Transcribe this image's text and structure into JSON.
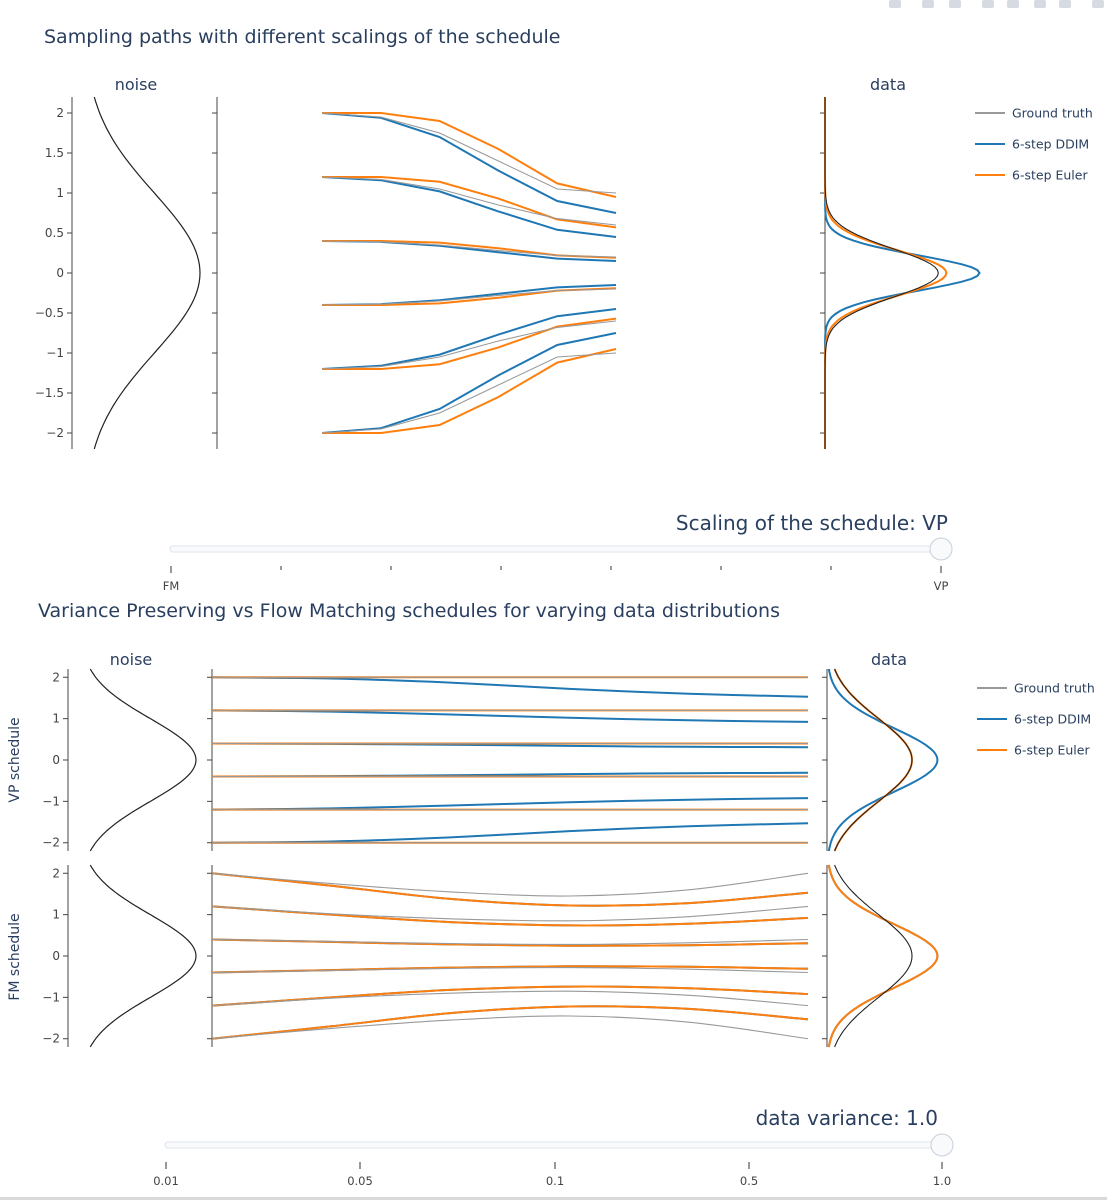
{
  "colors": {
    "ground_truth": "#999999",
    "ddim": "#1f77b4",
    "euler": "#ff7f0e",
    "axis": "#444444",
    "slider_track": "#dfe4ea",
    "slider_handle": "#f8fafc"
  },
  "modebar": {
    "icons": [
      "camera-icon",
      "zoom-icon",
      "pan-icon",
      "zoom-in-icon",
      "zoom-out-icon",
      "autoscale-icon",
      "reset-axes-icon",
      "plotly-logo-icon"
    ]
  },
  "chart_data": [
    {
      "type": "line",
      "title": "Sampling paths with different scalings of the schedule",
      "noise_title": "noise",
      "data_title": "data",
      "yticks": [
        "2",
        "1.5",
        "1",
        "0.5",
        "0",
        "−0.5",
        "−1",
        "−1.5",
        "−2"
      ],
      "ytick_values": [
        2,
        1.5,
        1,
        0.5,
        0,
        -0.5,
        -1,
        -1.5,
        -2
      ],
      "ylim": [
        -2.2,
        2.2
      ],
      "legend": [
        "Ground truth",
        "6-step DDIM",
        "6-step Euler"
      ],
      "t": [
        0,
        0.2,
        0.4,
        0.6,
        0.8,
        1.0
      ],
      "series": [
        {
          "name": "Ground truth",
          "paths": [
            [
              2,
              1.95,
              1.75,
              1.4,
              1.05,
              1.0
            ],
            [
              1.2,
              1.17,
              1.05,
              0.85,
              0.68,
              0.6
            ],
            [
              0.4,
              0.39,
              0.35,
              0.28,
              0.22,
              0.2
            ],
            [
              -0.4,
              -0.39,
              -0.35,
              -0.28,
              -0.22,
              -0.2
            ],
            [
              -1.2,
              -1.17,
              -1.05,
              -0.85,
              -0.68,
              -0.6
            ],
            [
              -2,
              -1.95,
              -1.75,
              -1.4,
              -1.05,
              -1.0
            ]
          ]
        },
        {
          "name": "6-step DDIM",
          "paths": [
            [
              2,
              1.94,
              1.7,
              1.28,
              0.9,
              0.75
            ],
            [
              1.2,
              1.16,
              1.02,
              0.77,
              0.54,
              0.45
            ],
            [
              0.4,
              0.39,
              0.34,
              0.26,
              0.18,
              0.15
            ],
            [
              -0.4,
              -0.39,
              -0.34,
              -0.26,
              -0.18,
              -0.15
            ],
            [
              -1.2,
              -1.16,
              -1.02,
              -0.77,
              -0.54,
              -0.45
            ],
            [
              -2,
              -1.94,
              -1.7,
              -1.28,
              -0.9,
              -0.75
            ]
          ]
        },
        {
          "name": "6-step Euler",
          "paths": [
            [
              2,
              2.0,
              1.9,
              1.55,
              1.12,
              0.95
            ],
            [
              1.2,
              1.2,
              1.14,
              0.93,
              0.67,
              0.57
            ],
            [
              0.4,
              0.4,
              0.38,
              0.31,
              0.22,
              0.19
            ],
            [
              -0.4,
              -0.4,
              -0.38,
              -0.31,
              -0.22,
              -0.19
            ],
            [
              -1.2,
              -1.2,
              -1.14,
              -0.93,
              -0.67,
              -0.57
            ],
            [
              -2,
              -2.0,
              -1.9,
              -1.55,
              -1.12,
              -0.95
            ]
          ]
        }
      ],
      "noise_density": {
        "mean": 0,
        "std": 1
      },
      "data_densities": [
        {
          "name": "Ground truth",
          "std": 0.3
        },
        {
          "name": "6-step DDIM",
          "std": 0.22
        },
        {
          "name": "6-step Euler",
          "std": 0.28
        }
      ]
    },
    {
      "type": "line",
      "title": "Variance Preserving vs Flow Matching schedules for varying data distributions",
      "noise_title": "noise",
      "data_title": "data",
      "row_labels": [
        "VP schedule",
        "FM schedule"
      ],
      "yticks": [
        "2",
        "1",
        "0",
        "−1",
        "−2"
      ],
      "ytick_values": [
        2,
        1,
        0,
        -1,
        -2
      ],
      "ylim": [
        -2.2,
        2.2
      ],
      "legend": [
        "Ground truth",
        "6-step DDIM",
        "6-step Euler"
      ],
      "t": [
        0,
        0.2,
        0.4,
        0.6,
        0.8,
        1.0
      ],
      "rows": [
        {
          "name": "VP schedule",
          "series": [
            {
              "name": "Ground truth",
              "paths": [
                [
                  2,
                  2,
                  2,
                  2,
                  2,
                  2
                ],
                [
                  1.2,
                  1.2,
                  1.2,
                  1.2,
                  1.2,
                  1.2
                ],
                [
                  0.4,
                  0.4,
                  0.4,
                  0.4,
                  0.4,
                  0.4
                ],
                [
                  -0.4,
                  -0.4,
                  -0.4,
                  -0.4,
                  -0.4,
                  -0.4
                ],
                [
                  -1.2,
                  -1.2,
                  -1.2,
                  -1.2,
                  -1.2,
                  -1.2
                ],
                [
                  -2,
                  -2,
                  -2,
                  -2,
                  -2,
                  -2
                ]
              ]
            },
            {
              "name": "6-step DDIM",
              "paths": [
                [
                  2,
                  1.97,
                  1.87,
                  1.72,
                  1.6,
                  1.53
                ],
                [
                  1.2,
                  1.17,
                  1.1,
                  1.02,
                  0.96,
                  0.92
                ],
                [
                  0.4,
                  0.39,
                  0.37,
                  0.34,
                  0.32,
                  0.31
                ],
                [
                  -0.4,
                  -0.39,
                  -0.37,
                  -0.34,
                  -0.32,
                  -0.31
                ],
                [
                  -1.2,
                  -1.17,
                  -1.1,
                  -1.02,
                  -0.96,
                  -0.92
                ],
                [
                  -2,
                  -1.97,
                  -1.87,
                  -1.72,
                  -1.6,
                  -1.53
                ]
              ]
            },
            {
              "name": "6-step Euler",
              "paths": [
                [
                  2,
                  2,
                  2,
                  2,
                  2,
                  2
                ],
                [
                  1.2,
                  1.2,
                  1.2,
                  1.2,
                  1.2,
                  1.2
                ],
                [
                  0.4,
                  0.4,
                  0.4,
                  0.4,
                  0.4,
                  0.4
                ],
                [
                  -0.4,
                  -0.4,
                  -0.4,
                  -0.4,
                  -0.4,
                  -0.4
                ],
                [
                  -1.2,
                  -1.2,
                  -1.2,
                  -1.2,
                  -1.2,
                  -1.2
                ],
                [
                  -2,
                  -2,
                  -2,
                  -2,
                  -2,
                  -2
                ]
              ]
            }
          ],
          "data_densities": [
            {
              "name": "Ground truth",
              "std": 1.0
            },
            {
              "name": "6-step DDIM",
              "std": 0.77
            },
            {
              "name": "6-step Euler",
              "std": 1.0
            }
          ]
        },
        {
          "name": "FM schedule",
          "series": [
            {
              "name": "Ground truth",
              "paths": [
                [
                  2,
                  1.75,
                  1.55,
                  1.45,
                  1.6,
                  2.0
                ],
                [
                  1.2,
                  1.02,
                  0.9,
                  0.85,
                  0.95,
                  1.2
                ],
                [
                  0.4,
                  0.35,
                  0.3,
                  0.28,
                  0.32,
                  0.4
                ],
                [
                  -0.4,
                  -0.35,
                  -0.3,
                  -0.28,
                  -0.32,
                  -0.4
                ],
                [
                  -1.2,
                  -1.02,
                  -0.9,
                  -0.85,
                  -0.95,
                  -1.2
                ],
                [
                  -2,
                  -1.75,
                  -1.55,
                  -1.45,
                  -1.6,
                  -2.0
                ]
              ]
            },
            {
              "name": "6-step DDIM",
              "paths": [
                [
                  2,
                  1.7,
                  1.38,
                  1.22,
                  1.28,
                  1.53
                ],
                [
                  1.2,
                  1.0,
                  0.82,
                  0.74,
                  0.78,
                  0.92
                ],
                [
                  0.4,
                  0.34,
                  0.28,
                  0.25,
                  0.26,
                  0.31
                ],
                [
                  -0.4,
                  -0.34,
                  -0.28,
                  -0.25,
                  -0.26,
                  -0.31
                ],
                [
                  -1.2,
                  -1.0,
                  -0.82,
                  -0.74,
                  -0.78,
                  -0.92
                ],
                [
                  -2,
                  -1.7,
                  -1.38,
                  -1.22,
                  -1.28,
                  -1.53
                ]
              ]
            },
            {
              "name": "6-step Euler",
              "paths": [
                [
                  2,
                  1.7,
                  1.38,
                  1.22,
                  1.28,
                  1.53
                ],
                [
                  1.2,
                  1.0,
                  0.82,
                  0.74,
                  0.78,
                  0.92
                ],
                [
                  0.4,
                  0.34,
                  0.28,
                  0.25,
                  0.26,
                  0.31
                ],
                [
                  -0.4,
                  -0.34,
                  -0.28,
                  -0.25,
                  -0.26,
                  -0.31
                ],
                [
                  -1.2,
                  -1.0,
                  -0.82,
                  -0.74,
                  -0.78,
                  -0.92
                ],
                [
                  -2,
                  -1.7,
                  -1.38,
                  -1.22,
                  -1.28,
                  -1.53
                ]
              ]
            }
          ],
          "data_densities": [
            {
              "name": "Ground truth",
              "std": 1.0
            },
            {
              "name": "6-step DDIM",
              "std": 0.77
            },
            {
              "name": "6-step Euler",
              "std": 0.77
            }
          ]
        }
      ]
    }
  ],
  "slider1": {
    "label": "Scaling of the schedule: VP",
    "ticks": [
      "FM",
      "",
      "",
      "",
      "",
      "",
      "",
      "VP"
    ],
    "value_index": 7,
    "tick_count": 8
  },
  "slider2": {
    "label": "data variance: 1.0",
    "ticks": [
      "0.01",
      "0.05",
      "0.1",
      "0.5",
      "1.0"
    ],
    "value_index": 4
  }
}
